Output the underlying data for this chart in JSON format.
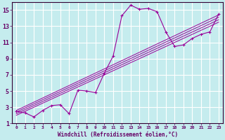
{
  "xlabel": "Windchill (Refroidissement éolien,°C)",
  "bg_color": "#c5ecee",
  "line_color": "#990099",
  "grid_color": "#aad4d8",
  "xlim": [
    -0.5,
    23.5
  ],
  "ylim": [
    1,
    16
  ],
  "xticks": [
    0,
    1,
    2,
    3,
    4,
    5,
    6,
    7,
    8,
    9,
    10,
    11,
    12,
    13,
    14,
    15,
    16,
    17,
    18,
    19,
    20,
    21,
    22,
    23
  ],
  "yticks": [
    1,
    3,
    5,
    7,
    9,
    11,
    13,
    15
  ],
  "main_x": [
    0,
    1,
    2,
    3,
    4,
    5,
    6,
    7,
    8,
    9,
    10,
    11,
    12,
    13,
    14,
    15,
    16,
    17,
    18,
    19,
    20,
    21,
    22,
    23
  ],
  "main_y": [
    2.5,
    2.3,
    1.8,
    2.6,
    3.2,
    3.3,
    2.2,
    5.1,
    5.0,
    4.8,
    7.2,
    9.3,
    14.3,
    15.6,
    15.1,
    15.2,
    14.8,
    12.3,
    10.5,
    10.7,
    11.5,
    12.0,
    12.3,
    14.5
  ],
  "diag_lines": [
    {
      "x0": 0,
      "y0": 2.0,
      "x1": 23,
      "y1": 13.5
    },
    {
      "x0": 0,
      "y0": 2.2,
      "x1": 23,
      "y1": 13.8
    },
    {
      "x0": 0,
      "y0": 2.4,
      "x1": 23,
      "y1": 14.1
    },
    {
      "x0": 0,
      "y0": 2.6,
      "x1": 23,
      "y1": 14.4
    }
  ]
}
